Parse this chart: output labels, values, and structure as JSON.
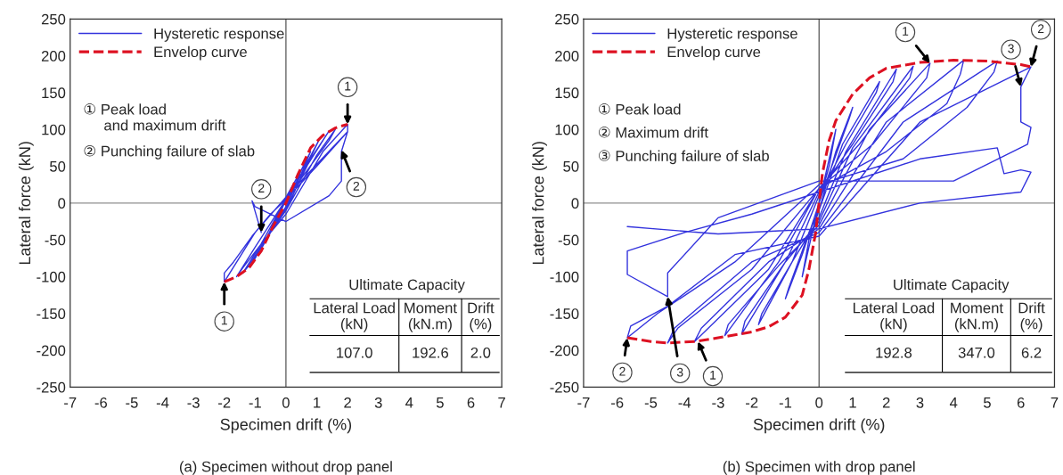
{
  "chart_data": [
    {
      "type": "line",
      "title": "(a) Specimen without drop panel",
      "xlabel": "Specimen drift (%)",
      "ylabel": "Lateral force (kN)",
      "xlim": [
        -7,
        7
      ],
      "xticks": [
        -7,
        -6,
        -5,
        -4,
        -3,
        -2,
        -1,
        0,
        1,
        2,
        3,
        4,
        5,
        6,
        7
      ],
      "ylim": [
        -250,
        250
      ],
      "yticks": [
        -250,
        -200,
        -150,
        -100,
        -50,
        0,
        50,
        100,
        150,
        200,
        250
      ],
      "grid": false,
      "legend": "top left",
      "ref_lines": [
        {
          "axis": "x",
          "value": 0,
          "color": "#404040"
        },
        {
          "axis": "y",
          "value": 0,
          "color": "#909090"
        }
      ],
      "series": [
        {
          "name": "Hysteretic response",
          "color": "#3333dd",
          "line_style": "solid",
          "x": [
            0,
            0.3,
            0.5,
            0.3,
            0,
            -0.3,
            -0.5,
            -0.3,
            0,
            0.5,
            0.8,
            0.5,
            0,
            -0.5,
            -0.8,
            -0.5,
            0,
            0.6,
            1.1,
            1.0,
            0.5,
            0,
            -0.6,
            -1.1,
            -1.0,
            -0.5,
            0,
            0.8,
            1.4,
            1.2,
            0.6,
            0,
            -0.8,
            -1.4,
            -1.2,
            -0.6,
            0,
            1.0,
            1.6,
            1.4,
            0.7,
            0,
            -1.0,
            -1.6,
            -1.4,
            -0.7,
            0,
            1.2,
            2,
            2,
            1.5,
            0.6,
            0,
            -1.0,
            -2,
            -2,
            -1.7,
            -1.1,
            -0.5,
            0,
            1.0,
            2,
            1.8,
            1.8,
            1.4,
            0,
            -1.0,
            -1.1,
            -0.8
          ],
          "values": [
            0,
            25,
            45,
            30,
            5,
            -25,
            -40,
            -25,
            -5,
            40,
            70,
            45,
            8,
            -40,
            -62,
            -40,
            -10,
            45,
            88,
            80,
            40,
            5,
            -45,
            -82,
            -75,
            -38,
            -8,
            60,
            98,
            85,
            45,
            5,
            -55,
            -95,
            -85,
            -45,
            -10,
            65,
            100,
            85,
            45,
            5,
            -60,
            -100,
            -88,
            -50,
            -15,
            70,
            107,
            97,
            75,
            35,
            8,
            -40,
            -107,
            -95,
            -80,
            -45,
            -15,
            5,
            50,
            97,
            70,
            30,
            10,
            -25,
            -5,
            3,
            -40
          ]
        },
        {
          "name": "Envelop curve",
          "color": "#dd1122",
          "line_style": "dashed",
          "x": [
            -2,
            -1.6,
            -1.2,
            -0.8,
            -0.4,
            0,
            0.4,
            0.8,
            1.2,
            1.6,
            2
          ],
          "values": [
            -107,
            -100,
            -88,
            -65,
            -30,
            0,
            40,
            75,
            92,
            102,
            107
          ]
        }
      ],
      "annotations": [
        {
          "text": "1",
          "x": 2,
          "y": 107
        },
        {
          "text": "1",
          "x": -2,
          "y": -107
        },
        {
          "text": "2",
          "x": -0.8,
          "y": -40
        },
        {
          "text": "2",
          "x": 1.8,
          "y": 72
        },
        "① Peak load\n     and maximum drift",
        "② Punching failure of slab",
        "Ultimate Capacity",
        "Lateral Load\n(kN)",
        "Moment\n(kN.m)",
        "Drift\n(%)",
        "107.0",
        "192.6",
        "2.0"
      ]
    },
    {
      "type": "line",
      "title": "(b) Specimen with drop panel",
      "xlabel": "Specimen drift (%)",
      "ylabel": "Lateral force (kN)",
      "xlim": [
        -7,
        7
      ],
      "xticks": [
        -7,
        -6,
        -5,
        -4,
        -3,
        -2,
        -1,
        0,
        1,
        2,
        3,
        4,
        5,
        6,
        7
      ],
      "ylim": [
        -250,
        250
      ],
      "yticks": [
        -250,
        -200,
        -150,
        -100,
        -50,
        0,
        50,
        100,
        150,
        200,
        250
      ],
      "grid": false,
      "legend": "top left",
      "ref_lines": [
        {
          "axis": "x",
          "value": 0,
          "color": "#404040"
        },
        {
          "axis": "y",
          "value": 0,
          "color": "#909090"
        }
      ],
      "series": [
        {
          "name": "Hysteretic response",
          "color": "#3333dd",
          "line_style": "solid",
          "x": [
            0,
            0.3,
            0.5,
            0.3,
            0,
            -0.3,
            -0.5,
            -0.3,
            0,
            0.5,
            1.0,
            0.9,
            0.3,
            0,
            -0.5,
            -1.0,
            -0.9,
            -0.3,
            0,
            0.7,
            1.8,
            1.7,
            0.8,
            0,
            -0.8,
            -1.8,
            -1.7,
            -0.8,
            0,
            0.8,
            2.3,
            2.2,
            1.0,
            0,
            -1.0,
            -2.3,
            -2.2,
            -1.0,
            0,
            1.0,
            2.8,
            2.7,
            1.2,
            0,
            -1.2,
            -2.8,
            -2.7,
            -1.2,
            0,
            1.5,
            3.3,
            3.2,
            1.6,
            0,
            -1.5,
            -3.7,
            -3.5,
            -1.5,
            0,
            2.0,
            4.3,
            4.2,
            3.8,
            2.0,
            0,
            -2,
            -4.2,
            -4.5,
            -4.3,
            -2.0,
            0,
            2.5,
            5.3,
            5.2,
            4.4,
            2.5,
            0,
            -2.5,
            -4.8,
            -5.7,
            -5.6,
            -4.5,
            -2.5,
            0,
            3,
            6.3,
            6.0,
            6.0,
            6.3,
            6.2,
            4,
            0,
            -3,
            -4.5,
            -4.5,
            -5.7,
            -5.7,
            -4,
            -2,
            0,
            3,
            5.3,
            5.5,
            6.0,
            6.3,
            6,
            3,
            0,
            -3,
            -5.7
          ],
          "values": [
            0,
            60,
            100,
            50,
            0,
            -60,
            -100,
            -50,
            -10,
            70,
            130,
            115,
            40,
            0,
            -70,
            -130,
            -115,
            -40,
            -10,
            80,
            165,
            150,
            80,
            10,
            -80,
            -165,
            -150,
            -80,
            -20,
            70,
            182,
            165,
            80,
            15,
            -80,
            -178,
            -160,
            -80,
            -25,
            75,
            186,
            170,
            80,
            20,
            -80,
            -180,
            -165,
            -85,
            -30,
            100,
            190,
            170,
            80,
            20,
            -90,
            -188,
            -170,
            -80,
            -35,
            110,
            194,
            175,
            135,
            70,
            20,
            -90,
            -170,
            -190,
            -170,
            -80,
            -40,
            110,
            193,
            178,
            130,
            60,
            25,
            -80,
            -150,
            -183,
            -167,
            -140,
            -70,
            -45,
            110,
            185,
            158,
            110,
            103,
            80,
            30,
            30,
            -20,
            -95,
            -127,
            -97,
            -65,
            -40,
            -15,
            15,
            60,
            75,
            40,
            45,
            42,
            15,
            0,
            -35,
            -42,
            -32
          ]
        },
        {
          "name": "Envelop curve",
          "color": "#dd1122",
          "line_style": "dashed",
          "x": [
            -5.7,
            -5,
            -4.5,
            -3.7,
            -3,
            -2,
            -1.5,
            -1,
            -0.5,
            -0.3,
            -0.1,
            0,
            0.1,
            0.3,
            0.5,
            1,
            1.5,
            2,
            3,
            4,
            5,
            6,
            6.3
          ],
          "values": [
            -183,
            -188,
            -190,
            -188,
            -183,
            -175,
            -168,
            -155,
            -125,
            -90,
            -40,
            0,
            40,
            85,
            112,
            148,
            170,
            183,
            191,
            194,
            193,
            188,
            185
          ]
        }
      ],
      "annotations": [
        {
          "text": "1",
          "x": 3.3,
          "y": 190
        },
        {
          "text": "1",
          "x": -3.6,
          "y": -188
        },
        {
          "text": "2",
          "x": 6.3,
          "y": 185
        },
        {
          "text": "2",
          "x": -5.7,
          "y": -183
        },
        {
          "text": "3",
          "x": 6.0,
          "y": 158
        },
        {
          "text": "3",
          "x": -4.5,
          "y": -127
        },
        "① Peak load",
        "② Maximum drift",
        "③ Punching failure of slab",
        "Ultimate Capacity",
        "Lateral Load\n(kN)",
        "Moment\n(kN.m)",
        "Drift\n(%)",
        "192.8",
        "347.0",
        "6.2"
      ]
    }
  ]
}
